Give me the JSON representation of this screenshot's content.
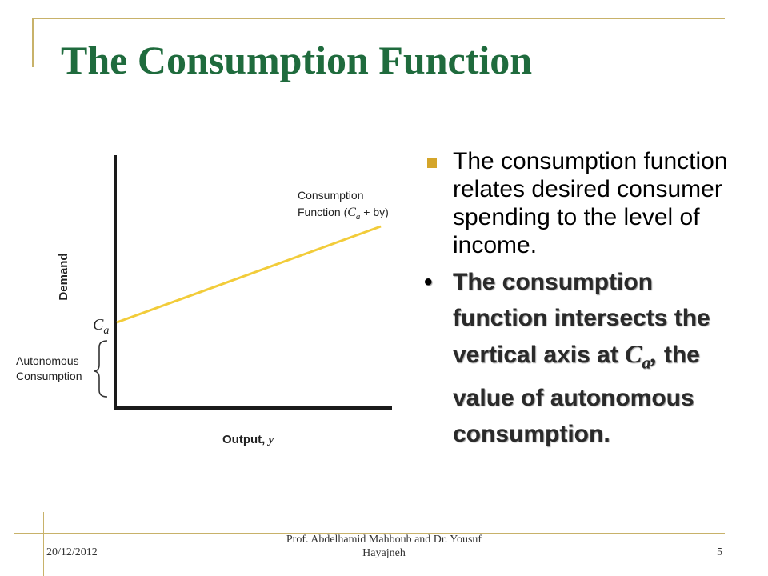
{
  "slide": {
    "title": "The Consumption Function",
    "bullet_1": "The consumption function relates desired consumer spending to the level of income.",
    "bullet_2_text": "The consumption function intersects the vertical axis at ",
    "bullet_2_symbol": "C",
    "bullet_2_symbol_sub": "a",
    "bullet_2_comma": ",",
    "bullet_2_tail": " the value of autonomous consumption.",
    "bullet_2_marker": "•"
  },
  "diagram": {
    "y_axis_label": "Demand",
    "x_axis_label": "Output, ",
    "x_axis_var": "y",
    "intercept_label": "C",
    "intercept_sub": "a",
    "brace_label_line1": "Autonomous",
    "brace_label_line2": "Consumption",
    "curve_label_line1": "Consumption",
    "curve_label_line2_prefix": "Function (",
    "curve_label_ca": "C",
    "curve_label_ca_sub": "a",
    "curve_label_rest": " + by)",
    "line_color": "#f2cc3a"
  },
  "footer": {
    "date": "20/12/2012",
    "author_line1": "Prof. Abdelhamid Mahboub and Dr. Yousuf",
    "author_line2": "Hayajneh",
    "page": "5"
  },
  "colors": {
    "title": "#1f6b3d",
    "accent": "#c8b26a",
    "bullet_square": "#d4a52a"
  }
}
